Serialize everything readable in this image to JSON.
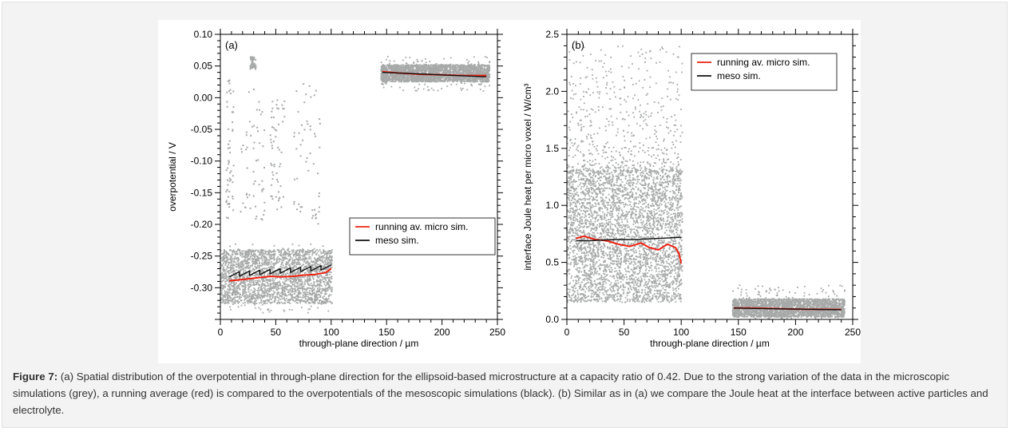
{
  "caption": {
    "label": "Figure 7:",
    "text": " (a) Spatial distribution of the overpotential in through-plane direction for the ellipsoid-based microstructure at a capacity ratio of 0.42. Due to the strong variation of the data in the microscopic simulations (grey), a running average (red) is compared to the overpotentials of the mesoscopic simulations (black). (b) Similar as in (a) we compare the Joule heat at the interface between active particles and electrolyte."
  },
  "colors": {
    "scatter": "#a7a9a9",
    "running": "#ee2211",
    "meso": "#111111",
    "axis": "#000000"
  },
  "chart_data": [
    {
      "type": "scatter",
      "panel_label": "(a)",
      "xlabel": "through-plane direction / µm",
      "ylabel": "overpotential / V",
      "xlim": [
        0,
        250
      ],
      "ylim": [
        -0.35,
        0.1
      ],
      "xticks": [
        0,
        50,
        100,
        150,
        200,
        250
      ],
      "xtick_labels": [
        "0",
        "50",
        "100",
        "150",
        "200",
        "250"
      ],
      "yticks": [
        -0.3,
        -0.25,
        -0.2,
        -0.15,
        -0.1,
        -0.05,
        0.0,
        0.05,
        0.1
      ],
      "ytick_labels": [
        "-0.30",
        "-0.25",
        "-0.20",
        "-0.15",
        "-0.10",
        "-0.05",
        "0.00",
        "0.05",
        "0.10"
      ],
      "legend": [
        "running av. micro sim.",
        "meso sim."
      ],
      "legend_placement": "center-right",
      "grid": false,
      "scatter_regions": [
        {
          "x": [
            0,
            101
          ],
          "y_core": [
            -0.325,
            -0.24
          ],
          "y_outliers": [
            -0.34,
            -0.23
          ]
        },
        {
          "x": [
            145,
            243
          ],
          "y_core": [
            0.025,
            0.052
          ],
          "y_outliers": [
            0.01,
            0.065
          ]
        }
      ],
      "scatter_sparse_clusters": [
        {
          "x": [
            5,
            12
          ],
          "y": [
            -0.19,
            0.03
          ]
        },
        {
          "x": [
            18,
            40
          ],
          "y": [
            -0.2,
            0.02
          ]
        },
        {
          "x": [
            45,
            58
          ],
          "y": [
            -0.18,
            0.0
          ]
        },
        {
          "x": [
            66,
            90
          ],
          "y": [
            -0.2,
            0.03
          ]
        },
        {
          "x": [
            27,
            32
          ],
          "y": [
            0.045,
            0.065
          ]
        }
      ],
      "series": [
        {
          "name": "running av. micro sim.",
          "x": [
            8,
            15,
            25,
            35,
            45,
            55,
            65,
            75,
            85,
            95,
            100
          ],
          "y": [
            -0.289,
            -0.288,
            -0.286,
            -0.284,
            -0.282,
            -0.283,
            -0.282,
            -0.28,
            -0.279,
            -0.276,
            -0.27
          ]
        },
        {
          "name": "running av. micro sim.",
          "x": [
            146,
            160,
            180,
            200,
            220,
            240
          ],
          "y": [
            0.041,
            0.039,
            0.037,
            0.036,
            0.035,
            0.035
          ]
        },
        {
          "name": "meso sim.",
          "x": [
            8,
            100
          ],
          "y": [
            -0.283,
            -0.271
          ],
          "steps": 10,
          "step_drop": 0.007
        },
        {
          "name": "meso sim.",
          "x": [
            146,
            240
          ],
          "y": [
            0.04,
            0.033
          ]
        }
      ]
    },
    {
      "type": "scatter",
      "panel_label": "(b)",
      "xlabel": "through-plane direction / µm",
      "ylabel": "interface Joule heat per micro voxel / W/cm³",
      "xlim": [
        0,
        250
      ],
      "ylim": [
        0,
        2.5
      ],
      "xticks": [
        0,
        50,
        100,
        150,
        200,
        250
      ],
      "xtick_labels": [
        "0",
        "50",
        "100",
        "150",
        "200",
        "250"
      ],
      "yticks": [
        0.0,
        0.5,
        1.0,
        1.5,
        2.0,
        2.5
      ],
      "ytick_labels": [
        "0.0",
        "0.5",
        "1.0",
        "1.5",
        "2.0",
        "2.5"
      ],
      "legend": [
        "running av. micro sim.",
        "meso sim."
      ],
      "legend_placement": "top-right",
      "grid": false,
      "scatter_regions": [
        {
          "x": [
            0,
            101
          ],
          "y_core": [
            0.15,
            1.3
          ],
          "y_outliers": [
            0.1,
            2.4
          ]
        },
        {
          "x": [
            145,
            243
          ],
          "y_core": [
            0.02,
            0.18
          ],
          "y_outliers": [
            0.0,
            0.3
          ]
        }
      ],
      "series": [
        {
          "name": "running av. micro sim.",
          "x": [
            8,
            15,
            25,
            35,
            45,
            55,
            65,
            72,
            80,
            88,
            95,
            98,
            100
          ],
          "y": [
            0.71,
            0.73,
            0.7,
            0.69,
            0.66,
            0.64,
            0.67,
            0.63,
            0.61,
            0.66,
            0.63,
            0.58,
            0.49
          ]
        },
        {
          "name": "running av. micro sim.",
          "x": [
            146,
            160,
            180,
            200,
            220,
            240
          ],
          "y": [
            0.1,
            0.1,
            0.095,
            0.09,
            0.088,
            0.087
          ]
        },
        {
          "name": "meso sim.",
          "x": [
            8,
            20,
            40,
            60,
            80,
            100
          ],
          "y": [
            0.69,
            0.69,
            0.7,
            0.7,
            0.71,
            0.72
          ]
        },
        {
          "name": "meso sim.",
          "x": [
            146,
            170,
            200,
            240
          ],
          "y": [
            0.1,
            0.095,
            0.09,
            0.085
          ]
        }
      ]
    }
  ]
}
